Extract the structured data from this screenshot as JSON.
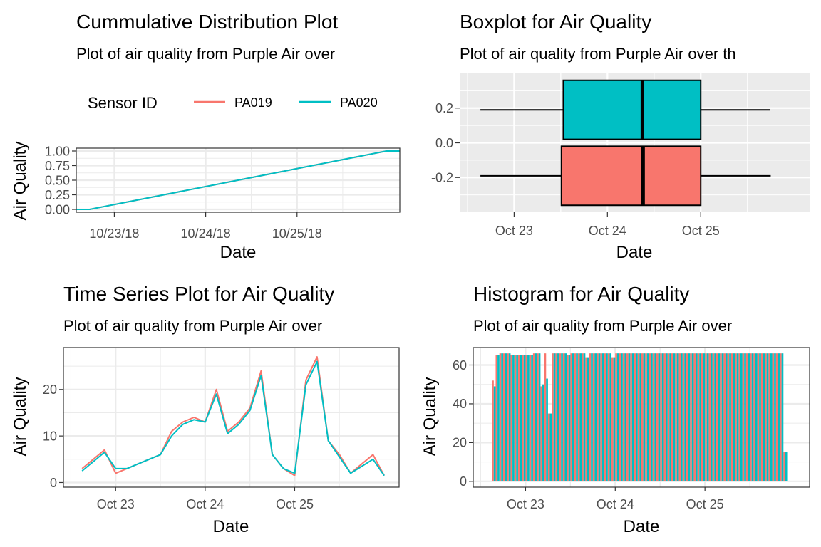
{
  "panels": {
    "ecdf": {
      "title": "Cummulative Distribution Plot",
      "subtitle": "Plot of air quality from Purple Air over",
      "xlabel": "Date",
      "ylabel": "Air Quality",
      "legend_title": "Sensor ID"
    },
    "boxplot": {
      "title": "Boxplot for Air Quality",
      "subtitle": "Plot of air quality from Purple Air over th",
      "xlabel": "Date"
    },
    "timeseries": {
      "title": "Time Series Plot for Air Quality",
      "subtitle": "Plot of air quality from Purple Air over",
      "xlabel": "Date",
      "ylabel": "Air Quality"
    },
    "histogram": {
      "title": "Histogram for Air Quality",
      "subtitle": "Plot of air quality from Purple Air over",
      "xlabel": "Date",
      "ylabel": "Air Quality"
    }
  },
  "colors": {
    "PA019": "#F8766D",
    "PA020": "#00BFC4",
    "grid": "#EBEBEB",
    "panel_grey": "#EBEBEB"
  },
  "chart_data": [
    {
      "id": "ecdf",
      "type": "line",
      "title": "Cummulative Distribution Plot",
      "subtitle": "Plot of air quality from Purple Air over",
      "xlabel": "Date",
      "ylabel": "Air Quality",
      "x_type": "date",
      "x_ticks": [
        "10/23/18",
        "10/24/18",
        "10/25/18"
      ],
      "x_tick_values": [
        "2018-10-23",
        "2018-10-24",
        "2018-10-25"
      ],
      "xlim": [
        "2018-10-22 14:00",
        "2018-10-26 03:00"
      ],
      "ylim": [
        0,
        1
      ],
      "y_ticks": [
        "0.00",
        "0.25",
        "0.50",
        "0.75",
        "1.00"
      ],
      "y_tick_values": [
        0,
        0.25,
        0.5,
        0.75,
        1
      ],
      "legend_position": "top",
      "legend_title": "Sensor ID",
      "series": [
        {
          "name": "PA019",
          "color": "#F8766D",
          "x": [
            "2018-10-22 14:00",
            "2018-10-22 17:30",
            "2018-10-25 23:30",
            "2018-10-26 03:00"
          ],
          "y": [
            0,
            0,
            1,
            1
          ]
        },
        {
          "name": "PA020",
          "color": "#00BFC4",
          "x": [
            "2018-10-22 14:00",
            "2018-10-22 17:30",
            "2018-10-25 23:30",
            "2018-10-26 03:00"
          ],
          "y": [
            0,
            0,
            1,
            1
          ]
        }
      ]
    },
    {
      "id": "boxplot",
      "type": "box",
      "title": "Boxplot for Air Quality",
      "subtitle": "Plot of air quality from Purple Air over th",
      "xlabel": "Date",
      "x_type": "date",
      "x_ticks": [
        "Oct 23",
        "Oct 24",
        "Oct 25"
      ],
      "x_tick_values": [
        "2018-10-23",
        "2018-10-24",
        "2018-10-25"
      ],
      "xlim": [
        "2018-10-22 10:00",
        "2018-10-26 04:00"
      ],
      "y_ticks": [
        "-0.2",
        "0.0",
        "0.2"
      ],
      "y_tick_values": [
        -0.2,
        0,
        0.2
      ],
      "ylim": [
        -0.4,
        0.4
      ],
      "boxes": [
        {
          "name": "PA019",
          "color": "#F8766D",
          "y_center": -0.19,
          "half_width": 0.17,
          "whisker_low": "2018-10-22 15:20",
          "q1": "2018-10-23 12:10",
          "median": "2018-10-24 09:10",
          "q3": "2018-10-25 00:00",
          "whisker_high": "2018-10-25 18:00"
        },
        {
          "name": "PA020",
          "color": "#00BFC4",
          "y_center": 0.19,
          "half_width": 0.17,
          "whisker_low": "2018-10-22 15:20",
          "q1": "2018-10-23 12:40",
          "median": "2018-10-24 09:00",
          "q3": "2018-10-25 00:00",
          "whisker_high": "2018-10-25 17:50"
        }
      ]
    },
    {
      "id": "timeseries",
      "type": "line",
      "title": "Time Series Plot for Air Quality",
      "subtitle": "Plot of air quality from Purple Air over",
      "xlabel": "Date",
      "ylabel": "Air Quality",
      "x_type": "date",
      "x_ticks": [
        "Oct 23",
        "Oct 24",
        "Oct 25"
      ],
      "x_tick_values": [
        "2018-10-23",
        "2018-10-24",
        "2018-10-25"
      ],
      "xlim": [
        "2018-10-22 10:00",
        "2018-10-26 04:00"
      ],
      "ylim": [
        -1,
        29
      ],
      "y_ticks": [
        "0",
        "10",
        "20"
      ],
      "y_tick_values": [
        0,
        10,
        20
      ],
      "series": [
        {
          "name": "PA019",
          "color": "#F8766D",
          "x": [
            "2018-10-22 15:00",
            "2018-10-22 18:00",
            "2018-10-22 21:00",
            "2018-10-23 00:00",
            "2018-10-23 03:00",
            "2018-10-23 06:00",
            "2018-10-23 09:00",
            "2018-10-23 12:00",
            "2018-10-23 15:00",
            "2018-10-23 18:00",
            "2018-10-23 21:00",
            "2018-10-24 00:00",
            "2018-10-24 03:00",
            "2018-10-24 06:00",
            "2018-10-24 09:00",
            "2018-10-24 12:00",
            "2018-10-24 15:00",
            "2018-10-24 18:00",
            "2018-10-24 21:00",
            "2018-10-25 00:00",
            "2018-10-25 03:00",
            "2018-10-25 06:00",
            "2018-10-25 09:00",
            "2018-10-25 12:00",
            "2018-10-25 15:00",
            "2018-10-25 18:00",
            "2018-10-25 21:00",
            "2018-10-26 00:00"
          ],
          "y": [
            3,
            5,
            7,
            2,
            3,
            4,
            5,
            6,
            11,
            13,
            14,
            13,
            20,
            11,
            13,
            16,
            24,
            6,
            3,
            1.5,
            22,
            27,
            9,
            6,
            2,
            4,
            6,
            1.5
          ]
        },
        {
          "name": "PA020",
          "color": "#00BFC4",
          "x": [
            "2018-10-22 15:00",
            "2018-10-22 18:00",
            "2018-10-22 21:00",
            "2018-10-23 00:00",
            "2018-10-23 03:00",
            "2018-10-23 06:00",
            "2018-10-23 09:00",
            "2018-10-23 12:00",
            "2018-10-23 15:00",
            "2018-10-23 18:00",
            "2018-10-23 21:00",
            "2018-10-24 00:00",
            "2018-10-24 03:00",
            "2018-10-24 06:00",
            "2018-10-24 09:00",
            "2018-10-24 12:00",
            "2018-10-24 15:00",
            "2018-10-24 18:00",
            "2018-10-24 21:00",
            "2018-10-25 00:00",
            "2018-10-25 03:00",
            "2018-10-25 06:00",
            "2018-10-25 09:00",
            "2018-10-25 12:00",
            "2018-10-25 15:00",
            "2018-10-25 18:00",
            "2018-10-25 21:00",
            "2018-10-26 00:00"
          ],
          "y": [
            2.5,
            4.5,
            6.5,
            3,
            3,
            4,
            5,
            6,
            10,
            12.5,
            13.5,
            13,
            19,
            10.5,
            12.5,
            15.5,
            23,
            6,
            3,
            2,
            21,
            26,
            9,
            5.5,
            2,
            3.5,
            5,
            1.5
          ]
        }
      ]
    },
    {
      "id": "histogram",
      "type": "bar",
      "title": "Histogram for Air Quality",
      "subtitle": "Plot of air quality from Purple Air over",
      "xlabel": "Date",
      "ylabel": "Air Quality",
      "x_type": "date",
      "x_ticks": [
        "Oct 23",
        "Oct 24",
        "Oct 25"
      ],
      "x_tick_values": [
        "2018-10-23",
        "2018-10-24",
        "2018-10-25"
      ],
      "xlim": [
        "2018-10-22 10:00",
        "2018-10-26 04:00"
      ],
      "ylim": [
        -3,
        69
      ],
      "y_ticks": [
        "0",
        "20",
        "40",
        "60"
      ],
      "y_tick_values": [
        0,
        20,
        40,
        60
      ],
      "bin_start": "2018-10-22 15:00",
      "bin_hours": 1,
      "series": [
        {
          "name": "PA019",
          "color": "#F8766D",
          "values": [
            52,
            65,
            66,
            66,
            66,
            65,
            65,
            65,
            65,
            65,
            65,
            66,
            66,
            49,
            66,
            35,
            66,
            66,
            66,
            66,
            65,
            66,
            66,
            66,
            66,
            64,
            66,
            66,
            66,
            66,
            66,
            66,
            64,
            66,
            66,
            66,
            66,
            66,
            66,
            66,
            66,
            66,
            66,
            66,
            66,
            66,
            66,
            66,
            66,
            66,
            66,
            66,
            66,
            66,
            66,
            66,
            66,
            66,
            66,
            66,
            66,
            66,
            66,
            66,
            66,
            66,
            66,
            66,
            66,
            66,
            66,
            66,
            66,
            66,
            66,
            66,
            66,
            66,
            15
          ]
        },
        {
          "name": "PA020",
          "color": "#00BFC4",
          "values": [
            49,
            65,
            66,
            66,
            66,
            65,
            65,
            65,
            65,
            65,
            65,
            66,
            66,
            50,
            53,
            35,
            66,
            66,
            66,
            66,
            65,
            66,
            66,
            66,
            66,
            64,
            66,
            66,
            66,
            66,
            66,
            66,
            64,
            66,
            66,
            66,
            66,
            66,
            66,
            66,
            66,
            66,
            66,
            66,
            66,
            66,
            66,
            66,
            66,
            66,
            66,
            66,
            66,
            66,
            66,
            66,
            66,
            66,
            66,
            66,
            66,
            66,
            66,
            66,
            66,
            66,
            66,
            66,
            66,
            66,
            66,
            66,
            66,
            66,
            66,
            66,
            66,
            66,
            15
          ]
        }
      ]
    }
  ]
}
